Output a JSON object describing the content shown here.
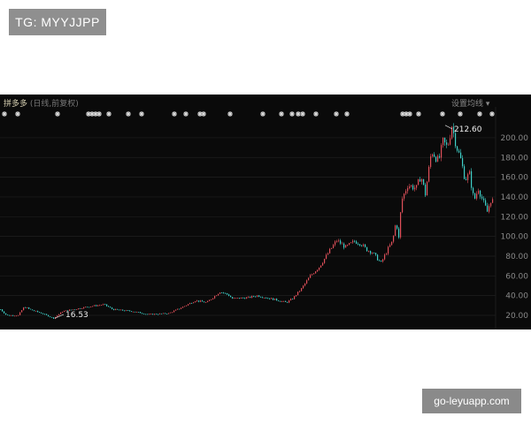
{
  "watermarks": {
    "top_left": "TG: MYYJJPP",
    "bottom_right": "go-leyuapp.com"
  },
  "header": {
    "stock_name": "拼多多",
    "mode": "(日线,前复权)",
    "ma_setting": "设置均线 ▾"
  },
  "colors": {
    "up": "#e0505a",
    "down": "#3fd0c8",
    "background": "#0a0a0a",
    "grid": "#1f1f1f"
  },
  "chart_data": {
    "type": "candlestick",
    "title": "拼多多 (日线,前复权)",
    "ylim": [
      6,
      235
    ],
    "yticks": [
      "20.00",
      "40.00",
      "60.00",
      "80.00",
      "100.00",
      "120.00",
      "140.00",
      "160.00",
      "180.00",
      "200.00"
    ],
    "grid": true,
    "annotations": [
      {
        "label": "212.60",
        "value": 212.6
      },
      {
        "label": "16.53",
        "value": 16.53
      }
    ],
    "points": [
      [
        0,
        26
      ],
      [
        7,
        20
      ],
      [
        20,
        20
      ],
      [
        27,
        29
      ],
      [
        33,
        26
      ],
      [
        47,
        22
      ],
      [
        60,
        17
      ],
      [
        70,
        24
      ],
      [
        100,
        29
      ],
      [
        117,
        31
      ],
      [
        127,
        26
      ],
      [
        150,
        24
      ],
      [
        167,
        21
      ],
      [
        190,
        22
      ],
      [
        207,
        29
      ],
      [
        220,
        35
      ],
      [
        233,
        33
      ],
      [
        248,
        44
      ],
      [
        257,
        41
      ],
      [
        262,
        37
      ],
      [
        280,
        38
      ],
      [
        290,
        40
      ],
      [
        310,
        36
      ],
      [
        323,
        33
      ],
      [
        330,
        37
      ],
      [
        340,
        47
      ],
      [
        350,
        60
      ],
      [
        360,
        69
      ],
      [
        373,
        87
      ],
      [
        380,
        96
      ],
      [
        390,
        89
      ],
      [
        400,
        95
      ],
      [
        407,
        93
      ],
      [
        413,
        87
      ],
      [
        420,
        84
      ],
      [
        430,
        73
      ],
      [
        437,
        86
      ],
      [
        443,
        95
      ],
      [
        447,
        116
      ],
      [
        450,
        98
      ],
      [
        453,
        136
      ],
      [
        460,
        152
      ],
      [
        470,
        149
      ],
      [
        475,
        162
      ],
      [
        480,
        143
      ],
      [
        487,
        187
      ],
      [
        495,
        176
      ],
      [
        500,
        196
      ],
      [
        505,
        190
      ],
      [
        510,
        212.6
      ],
      [
        515,
        192
      ],
      [
        520,
        178
      ],
      [
        525,
        158
      ],
      [
        530,
        163
      ],
      [
        535,
        136
      ],
      [
        540,
        149
      ],
      [
        545,
        136
      ],
      [
        550,
        125
      ],
      [
        555,
        140
      ],
      [
        557,
        132
      ]
    ],
    "event_markers": [
      5,
      20,
      65,
      100,
      104,
      108,
      112,
      123,
      145,
      160,
      197,
      210,
      226,
      230,
      260,
      297,
      318,
      330,
      337,
      342,
      357,
      380,
      392,
      455,
      459,
      463,
      473,
      500,
      520,
      542,
      556
    ]
  }
}
